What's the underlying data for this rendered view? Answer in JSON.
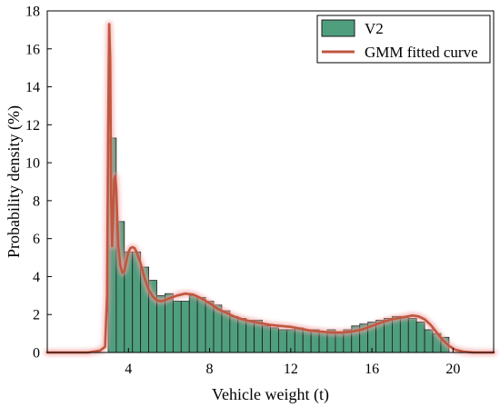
{
  "chart_data": {
    "type": "bar",
    "xlabel": "Vehicle weight (t)",
    "ylabel": "Probability density (%)",
    "xlim": [
      0,
      22
    ],
    "ylim": [
      0,
      18
    ],
    "xticks": [
      4,
      8,
      12,
      16,
      20
    ],
    "yticks": [
      0,
      2,
      4,
      6,
      8,
      10,
      12,
      14,
      16,
      18
    ],
    "bin_width": 0.4,
    "legend_position": "top-right",
    "colors": {
      "bars": "#4f9e7e",
      "bar_edge": "#1a1a1a",
      "curve": "#c0573f",
      "curve_glow": "#f2a0a0"
    },
    "legend": {
      "histogram": "V2",
      "curve": "GMM fitted curve"
    },
    "histogram": {
      "name": "V2",
      "x_start": [
        3.0,
        3.4,
        3.8,
        4.2,
        4.6,
        5.0,
        5.4,
        5.8,
        6.2,
        6.6,
        7.0,
        7.4,
        7.8,
        8.2,
        8.6,
        9.0,
        9.4,
        9.8,
        10.2,
        10.6,
        11.0,
        11.4,
        11.8,
        12.2,
        12.6,
        13.0,
        13.4,
        13.8,
        14.2,
        14.6,
        15.0,
        15.4,
        15.8,
        16.2,
        16.6,
        17.0,
        17.4,
        17.8,
        18.2,
        18.6,
        19.0,
        19.4
      ],
      "values": [
        11.3,
        6.9,
        5.3,
        5.3,
        4.5,
        3.8,
        3.0,
        3.1,
        2.7,
        2.7,
        3.0,
        2.9,
        2.7,
        2.5,
        2.2,
        1.9,
        1.8,
        1.7,
        1.7,
        1.4,
        1.3,
        1.2,
        1.2,
        1.3,
        1.2,
        1.2,
        1.1,
        1.2,
        1.1,
        1.2,
        1.4,
        1.5,
        1.6,
        1.7,
        1.8,
        1.9,
        1.9,
        1.8,
        1.6,
        1.2,
        1.0,
        0.8
      ]
    },
    "series": [
      {
        "name": "GMM fitted curve",
        "x": [
          0,
          2.0,
          2.6,
          2.85,
          2.95,
          3.0,
          3.05,
          3.1,
          3.15,
          3.2,
          3.25,
          3.3,
          3.35,
          3.4,
          3.45,
          3.5,
          3.6,
          3.7,
          3.8,
          3.9,
          4.0,
          4.1,
          4.2,
          4.3,
          4.4,
          4.5,
          4.6,
          4.7,
          4.8,
          5.0,
          5.2,
          5.4,
          5.6,
          5.8,
          6.0,
          6.4,
          6.8,
          7.2,
          7.6,
          8.0,
          8.4,
          8.8,
          9.2,
          9.6,
          10.0,
          10.5,
          11.0,
          11.5,
          12.0,
          12.5,
          13.0,
          13.5,
          14.0,
          14.5,
          15.0,
          15.5,
          16.0,
          16.5,
          17.0,
          17.5,
          18.0,
          18.3,
          18.6,
          18.9,
          19.2,
          19.5,
          19.8,
          20.1,
          20.5,
          21.0,
          21.5,
          22.0
        ],
        "values": [
          0.0,
          0.0,
          0.1,
          0.3,
          3.0,
          12.0,
          17.3,
          15.5,
          8.0,
          5.6,
          7.2,
          9.1,
          9.3,
          8.6,
          7.0,
          5.6,
          4.6,
          4.2,
          4.3,
          4.8,
          5.3,
          5.5,
          5.55,
          5.5,
          5.3,
          5.0,
          4.7,
          4.3,
          3.9,
          3.3,
          2.95,
          2.75,
          2.7,
          2.75,
          2.85,
          3.0,
          3.1,
          3.05,
          2.85,
          2.6,
          2.3,
          2.1,
          1.9,
          1.75,
          1.65,
          1.55,
          1.45,
          1.4,
          1.35,
          1.25,
          1.15,
          1.1,
          1.05,
          1.05,
          1.1,
          1.2,
          1.4,
          1.6,
          1.75,
          1.85,
          1.95,
          1.9,
          1.75,
          1.45,
          1.05,
          0.65,
          0.35,
          0.15,
          0.05,
          0.0,
          0.0,
          0.0
        ]
      }
    ]
  }
}
